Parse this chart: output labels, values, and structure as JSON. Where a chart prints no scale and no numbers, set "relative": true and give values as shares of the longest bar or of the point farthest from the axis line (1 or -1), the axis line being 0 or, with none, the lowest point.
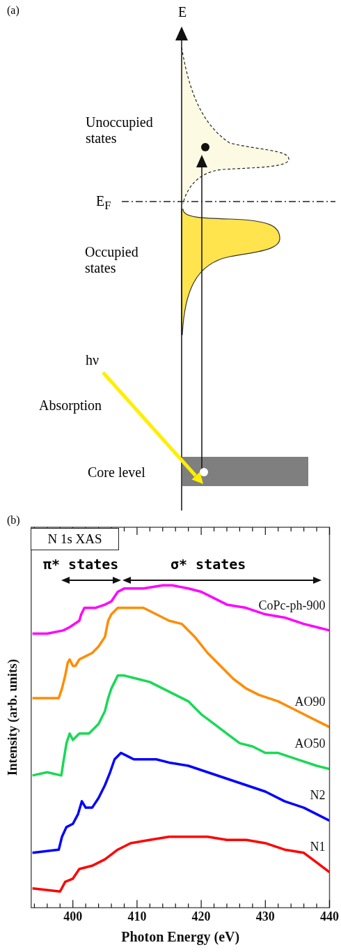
{
  "chart_data": [
    {
      "type": "other",
      "title": "(a)",
      "annotations": [
        "E",
        "Unoccupied states",
        "E$_{F}$",
        "Occupied states",
        "hν",
        "Absorption",
        "Core level"
      ]
    },
    {
      "type": "line",
      "title": "(b)",
      "xlabel": "Photon Energy (eV)",
      "ylabel": "Intensity (arb. units)",
      "relative": true,
      "marker": "none",
      "line_style": "solid",
      "grid": false,
      "legend": false,
      "annotations": [
        "N 1s XAS",
        "π* states",
        "σ* states"
      ],
      "xlim": [
        393.5,
        440
      ],
      "xticks": [
        {
          "value": 394,
          "label": null
        },
        {
          "value": 396,
          "label": null
        },
        {
          "value": 398,
          "label": null
        },
        400,
        {
          "value": 402,
          "label": null
        },
        {
          "value": 404,
          "label": null
        },
        {
          "value": 406,
          "label": null
        },
        {
          "value": 408,
          "label": null
        },
        410,
        {
          "value": 412,
          "label": null
        },
        {
          "value": 414,
          "label": null
        },
        {
          "value": 416,
          "label": null
        },
        {
          "value": 418,
          "label": null
        },
        420,
        {
          "value": 422,
          "label": null
        },
        {
          "value": 424,
          "label": null
        },
        {
          "value": 426,
          "label": null
        },
        {
          "value": 428,
          "label": null
        },
        430,
        {
          "value": 432,
          "label": null
        },
        {
          "value": 434,
          "label": null
        },
        {
          "value": 436,
          "label": null
        },
        {
          "value": 438,
          "label": null
        },
        440
      ],
      "series": [
        {
          "name": "CoPc-ph-900",
          "color": "#ff00ff",
          "x": [
            393.7,
            396,
            398.5,
            399.5,
            401,
            401.3,
            401.8,
            402.5,
            403.5,
            405,
            406,
            407,
            408,
            409,
            411,
            414,
            415.5,
            418,
            420,
            422,
            424,
            427,
            430,
            433,
            436,
            438,
            440
          ],
          "values": [
            0.85,
            0.85,
            0.86,
            0.87,
            0.89,
            0.91,
            0.93,
            0.93,
            0.93,
            0.94,
            0.95,
            0.98,
            0.99,
            0.99,
            0.99,
            1.0,
            1.0,
            0.99,
            0.98,
            0.96,
            0.94,
            0.93,
            0.91,
            0.9,
            0.88,
            0.87,
            0.86
          ]
        },
        {
          "name": "AO90",
          "color": "#ff8c00",
          "x": [
            393.7,
            397.8,
            398.3,
            398.8,
            399.2,
            399.5,
            400,
            400.4,
            401,
            402,
            403,
            404,
            405,
            405.5,
            406,
            407,
            408,
            410,
            411,
            413,
            415,
            417,
            419,
            421,
            423,
            425,
            427,
            429,
            432,
            435,
            438,
            440
          ],
          "values": [
            0.65,
            0.65,
            0.68,
            0.72,
            0.76,
            0.77,
            0.75,
            0.75,
            0.77,
            0.78,
            0.79,
            0.81,
            0.84,
            0.89,
            0.91,
            0.93,
            0.93,
            0.93,
            0.93,
            0.91,
            0.89,
            0.88,
            0.84,
            0.79,
            0.75,
            0.71,
            0.68,
            0.66,
            0.64,
            0.61,
            0.58,
            0.56
          ]
        },
        {
          "name": "AO50",
          "color": "#19d955",
          "x": [
            393.7,
            396,
            398.2,
            398.5,
            399,
            399.5,
            400,
            401,
            402.5,
            404,
            405,
            405.5,
            406,
            407,
            408,
            410,
            412,
            414,
            416,
            418,
            420,
            422,
            424,
            426,
            428,
            430,
            432,
            435,
            438,
            440
          ],
          "values": [
            0.41,
            0.42,
            0.41,
            0.45,
            0.51,
            0.54,
            0.52,
            0.54,
            0.54,
            0.57,
            0.61,
            0.65,
            0.68,
            0.72,
            0.72,
            0.71,
            0.7,
            0.68,
            0.66,
            0.64,
            0.6,
            0.57,
            0.54,
            0.51,
            0.5,
            0.48,
            0.48,
            0.46,
            0.44,
            0.43
          ]
        },
        {
          "name": "N2",
          "color": "#0000ff",
          "x": [
            393.7,
            397.8,
            398.3,
            399,
            400,
            400.8,
            401.4,
            402,
            403,
            404,
            405,
            405.8,
            406.5,
            407.5,
            408.5,
            409.5,
            411,
            413,
            415,
            418,
            421,
            424,
            427,
            430,
            433,
            436,
            438,
            440
          ],
          "values": [
            0.17,
            0.18,
            0.22,
            0.25,
            0.26,
            0.29,
            0.33,
            0.31,
            0.31,
            0.34,
            0.38,
            0.42,
            0.46,
            0.48,
            0.47,
            0.46,
            0.46,
            0.46,
            0.45,
            0.44,
            0.42,
            0.4,
            0.38,
            0.36,
            0.33,
            0.31,
            0.29,
            0.27
          ]
        },
        {
          "name": "N1",
          "color": "#ff0000",
          "x": [
            393.7,
            398,
            398.8,
            400,
            401,
            403,
            405,
            407,
            409,
            412,
            415,
            418,
            421,
            424,
            427,
            430,
            433,
            436,
            438,
            440
          ],
          "values": [
            0.06,
            0.05,
            0.08,
            0.09,
            0.12,
            0.13,
            0.15,
            0.18,
            0.2,
            0.21,
            0.22,
            0.22,
            0.22,
            0.21,
            0.21,
            0.2,
            0.18,
            0.17,
            0.14,
            0.11
          ]
        }
      ]
    }
  ]
}
